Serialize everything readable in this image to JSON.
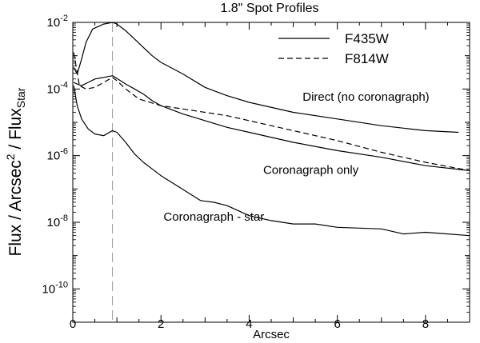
{
  "chart_data": {
    "type": "line",
    "title": "1.8\" Spot Profiles",
    "xlabel": "Arcsec",
    "ylabel": {
      "main": "Flux / Arcsec",
      "sup": "2",
      "mid": " / Flux",
      "sub": "Star"
    },
    "xlim": [
      0,
      9
    ],
    "ylim_log10": [
      -11,
      -2
    ],
    "yscale": "log",
    "grid": false,
    "xticks": [
      {
        "value": 0,
        "label": "0"
      },
      {
        "value": 2,
        "label": "2"
      },
      {
        "value": 4,
        "label": "4"
      },
      {
        "value": 6,
        "label": "6"
      },
      {
        "value": 8,
        "label": "8"
      }
    ],
    "yticks": [
      {
        "exp": -2,
        "base": "10",
        "power": "-2"
      },
      {
        "exp": -4,
        "base": "10",
        "power": "-4"
      },
      {
        "exp": -6,
        "base": "10",
        "power": "-6"
      },
      {
        "exp": -8,
        "base": "10",
        "power": "-8"
      },
      {
        "exp": -10,
        "base": "10",
        "power": "-10"
      }
    ],
    "reference_line": {
      "x": 0.9,
      "style": "long-dash",
      "color": "#999999"
    },
    "legend": {
      "position": "top-right",
      "entries": [
        {
          "label": "F435W",
          "style": "solid"
        },
        {
          "label": "F814W",
          "style": "dashed"
        }
      ]
    },
    "series": [
      {
        "name": "Direct F435W",
        "style": "solid",
        "points": [
          [
            0.02,
            -3.35
          ],
          [
            0.1,
            -3.55
          ],
          [
            0.2,
            -3.1
          ],
          [
            0.3,
            -2.6
          ],
          [
            0.45,
            -2.2
          ],
          [
            0.7,
            -2.05
          ],
          [
            0.9,
            -2.0
          ],
          [
            1.0,
            -2.05
          ],
          [
            1.2,
            -2.25
          ],
          [
            1.4,
            -2.5
          ],
          [
            1.6,
            -2.75
          ],
          [
            1.8,
            -3.0
          ],
          [
            2.0,
            -3.2
          ],
          [
            2.5,
            -3.55
          ],
          [
            3.0,
            -3.95
          ],
          [
            3.5,
            -4.2
          ],
          [
            4.0,
            -4.4
          ],
          [
            5.0,
            -4.7
          ],
          [
            6.0,
            -4.9
          ],
          [
            7.0,
            -5.1
          ],
          [
            8.0,
            -5.25
          ],
          [
            8.75,
            -5.3
          ]
        ]
      },
      {
        "name": "Coronagraph only F435W",
        "style": "solid",
        "points": [
          [
            0.02,
            -3.8
          ],
          [
            0.1,
            -3.85
          ],
          [
            0.2,
            -3.9
          ],
          [
            0.35,
            -3.8
          ],
          [
            0.5,
            -3.7
          ],
          [
            0.7,
            -3.65
          ],
          [
            0.9,
            -3.6
          ],
          [
            1.0,
            -3.68
          ],
          [
            1.2,
            -3.85
          ],
          [
            1.4,
            -4.0
          ],
          [
            1.6,
            -4.15
          ],
          [
            1.8,
            -4.35
          ],
          [
            2.0,
            -4.5
          ],
          [
            2.5,
            -4.75
          ],
          [
            3.0,
            -4.95
          ],
          [
            3.5,
            -5.15
          ],
          [
            4.0,
            -5.3
          ],
          [
            5.0,
            -5.6
          ],
          [
            6.0,
            -5.85
          ],
          [
            7.0,
            -6.05
          ],
          [
            8.0,
            -6.3
          ],
          [
            9.0,
            -6.45
          ]
        ]
      },
      {
        "name": "Coronagraph only F814W",
        "style": "dashed",
        "points": [
          [
            0.02,
            -2.9
          ],
          [
            0.08,
            -3.35
          ],
          [
            0.15,
            -3.9
          ],
          [
            0.3,
            -4.0
          ],
          [
            0.5,
            -3.95
          ],
          [
            0.7,
            -3.8
          ],
          [
            0.9,
            -3.65
          ],
          [
            1.0,
            -3.75
          ],
          [
            1.2,
            -4.0
          ],
          [
            1.5,
            -4.3
          ],
          [
            2.0,
            -4.5
          ],
          [
            2.5,
            -4.6
          ],
          [
            3.0,
            -4.7
          ],
          [
            3.5,
            -4.8
          ],
          [
            4.0,
            -4.95
          ],
          [
            5.0,
            -5.25
          ],
          [
            6.0,
            -5.55
          ],
          [
            7.0,
            -5.9
          ],
          [
            8.0,
            -6.2
          ],
          [
            9.0,
            -6.45
          ]
        ]
      },
      {
        "name": "Coronagraph - star F435W",
        "style": "solid",
        "points": [
          [
            0.02,
            -3.9
          ],
          [
            0.1,
            -4.5
          ],
          [
            0.2,
            -4.9
          ],
          [
            0.35,
            -5.2
          ],
          [
            0.5,
            -5.35
          ],
          [
            0.7,
            -5.4
          ],
          [
            0.9,
            -5.25
          ],
          [
            1.0,
            -5.3
          ],
          [
            1.2,
            -5.6
          ],
          [
            1.4,
            -5.95
          ],
          [
            1.6,
            -6.2
          ],
          [
            1.8,
            -6.4
          ],
          [
            2.0,
            -6.6
          ],
          [
            2.3,
            -6.85
          ],
          [
            2.6,
            -7.1
          ],
          [
            2.9,
            -7.35
          ],
          [
            3.2,
            -7.4
          ],
          [
            3.5,
            -7.5
          ],
          [
            4.0,
            -7.8
          ],
          [
            4.5,
            -7.95
          ],
          [
            5.0,
            -8.05
          ],
          [
            5.5,
            -8.05
          ],
          [
            6.0,
            -8.15
          ],
          [
            7.0,
            -8.2
          ],
          [
            7.5,
            -8.35
          ],
          [
            8.0,
            -8.3
          ],
          [
            9.0,
            -8.4
          ]
        ]
      }
    ],
    "annotations": [
      {
        "text": "Direct (no coronagraph)",
        "x": 6.65,
        "y": -4.35
      },
      {
        "text": "Coronagraph only",
        "x": 5.4,
        "y": -6.55
      },
      {
        "text": "Coronagraph - star",
        "x": 3.2,
        "y": -7.95
      }
    ]
  }
}
